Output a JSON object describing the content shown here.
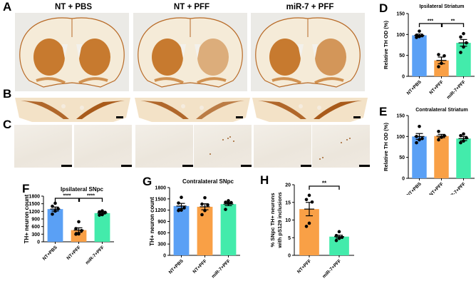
{
  "figure": {
    "panel_letters": {
      "A": "A",
      "B": "B",
      "C": "C",
      "D": "D",
      "E": "E",
      "F": "F",
      "G": "G",
      "H": "H"
    },
    "columns": [
      "NT + PBS",
      "NT + PFF",
      "miR-7 + PFF"
    ],
    "colors": {
      "NT+PBS": "#5aa0f5",
      "NT+PFF": "#f9a046",
      "miR-7+PFF": "#43ebab",
      "tissue": "#c77a2f",
      "tissue_dark": "#a85a1a",
      "background": "#ebeae6"
    }
  },
  "chart_data": [
    {
      "panel": "D",
      "type": "bar",
      "title": "Ipsilateral Striatum",
      "xlabel": "",
      "ylabel": "Relative TH OD (%)",
      "ylim": [
        0,
        150
      ],
      "yticks": [
        0,
        50,
        100,
        150
      ],
      "categories": [
        "NT+PBS",
        "NT+PFF",
        "miR-7+PFF"
      ],
      "values": [
        98,
        38,
        80
      ],
      "errors": [
        3,
        8,
        8
      ],
      "points": [
        [
          93,
          95,
          97,
          98,
          108
        ],
        [
          23,
          31,
          49,
          52
        ],
        [
          57,
          70,
          80,
          94,
          102
        ]
      ],
      "significance": [
        {
          "from": 0,
          "to": 1,
          "label": "***"
        },
        {
          "from": 1,
          "to": 2,
          "label": "**"
        }
      ]
    },
    {
      "panel": "E",
      "type": "bar",
      "title": "Contralateral Striatum",
      "xlabel": "",
      "ylabel": "Relative TH OD (%)",
      "ylim": [
        0,
        150
      ],
      "yticks": [
        0,
        50,
        100,
        150
      ],
      "categories": [
        "NT+PBS",
        "NT+PFF",
        "miR-7+PFF"
      ],
      "values": [
        100,
        101,
        95
      ],
      "errors": [
        7,
        4,
        5
      ],
      "points": [
        [
          85,
          92,
          95,
          100,
          124
        ],
        [
          92,
          98,
          102,
          112
        ],
        [
          85,
          89,
          97,
          102,
          106
        ]
      ],
      "significance": []
    },
    {
      "panel": "F",
      "type": "bar",
      "title": "Ipsilateral SNpc",
      "xlabel": "",
      "ylabel": "TH+ neuron count",
      "ylim": [
        0,
        1800
      ],
      "yticks": [
        0,
        300,
        600,
        900,
        1200,
        1500,
        1800
      ],
      "categories": [
        "NT+PBS",
        "NT+PFF",
        "miR-7+PFF"
      ],
      "values": [
        1290,
        460,
        1130
      ],
      "errors": [
        80,
        90,
        35
      ],
      "points": [
        [
          1090,
          1210,
          1300,
          1400,
          1520
        ],
        [
          300,
          310,
          440,
          520,
          790
        ],
        [
          1050,
          1070,
          1160,
          1180,
          1220
        ]
      ],
      "significance": [
        {
          "from": 0,
          "to": 1,
          "label": "****"
        },
        {
          "from": 1,
          "to": 2,
          "label": "****"
        }
      ]
    },
    {
      "panel": "G",
      "type": "bar",
      "title": "Contralateral SNpc",
      "xlabel": "",
      "ylabel": "TH+ neuron count",
      "ylim": [
        0,
        1800
      ],
      "yticks": [
        0,
        300,
        600,
        900,
        1200,
        1500,
        1800
      ],
      "categories": [
        "NT+PBS",
        "NT+PFF",
        "miR-7+PFF"
      ],
      "values": [
        1310,
        1290,
        1360
      ],
      "errors": [
        70,
        80,
        40
      ],
      "points": [
        [
          1190,
          1200,
          1260,
          1390,
          1540
        ],
        [
          1080,
          1190,
          1340,
          1360,
          1530
        ],
        [
          1220,
          1380,
          1400,
          1410,
          1450
        ]
      ],
      "significance": []
    },
    {
      "panel": "H",
      "type": "bar",
      "title": "",
      "xlabel": "",
      "ylabel": "% SNpc TH+ neurons with pS129 inclusions",
      "ylabel_lines": [
        "% SNpc TH+ neurons",
        "with pS129 inclusions"
      ],
      "ylim": [
        0,
        20
      ],
      "yticks": [
        0,
        5,
        10,
        15,
        20
      ],
      "categories": [
        "NT+PFF",
        "miR-7+PFF"
      ],
      "values": [
        13.1,
        5.3
      ],
      "errors": [
        1.9,
        0.4
      ],
      "points": [
        [
          8.2,
          9.1,
          15.1,
          15.8,
          17.0
        ],
        [
          4.2,
          4.8,
          5.1,
          5.6,
          6.7
        ]
      ],
      "significance": [
        {
          "from": 0,
          "to": 1,
          "label": "**"
        }
      ]
    }
  ]
}
